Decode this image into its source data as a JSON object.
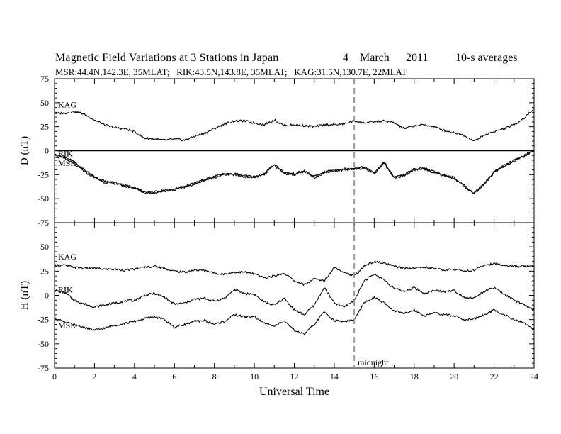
{
  "header": {
    "title": "Magnetic Field Variations at 3 Stations in Japan",
    "date_day": "4",
    "date_month": "March",
    "date_year": "2011",
    "averaging": "10-s averages",
    "stations_line": "MSR:44.4N,142.3E, 35MLAT;   RIK:43.5N,143.8E, 35MLAT;   KAG:31.5N,130.7E, 22MLAT"
  },
  "chart_data": [
    {
      "type": "line",
      "panel": "top",
      "ylabel": "D (nT)",
      "ylim": [
        -75,
        75
      ],
      "yticks": [
        -75,
        -50,
        -25,
        0,
        25,
        50,
        75
      ],
      "xlim": [
        0,
        24
      ],
      "zero_line": true,
      "series": [
        {
          "name": "KAG",
          "x": [
            0,
            0.5,
            1,
            1.5,
            2,
            2.5,
            3,
            3.5,
            4,
            4.5,
            5,
            5.5,
            6,
            6.5,
            7,
            7.5,
            8,
            8.5,
            9,
            9.5,
            10,
            10.5,
            11,
            11.5,
            12,
            12.5,
            13,
            13.5,
            14,
            14.5,
            15,
            15.5,
            16,
            16.5,
            17,
            17.5,
            18,
            18.5,
            19,
            19.5,
            20,
            20.5,
            21,
            21.5,
            22,
            22.5,
            23,
            23.5,
            24
          ],
          "values": [
            39,
            39,
            41,
            38,
            32,
            27,
            24,
            23,
            20,
            13,
            12,
            11,
            12,
            11,
            15,
            18,
            23,
            28,
            31,
            31,
            29,
            27,
            32,
            26,
            27,
            26,
            25,
            27,
            27,
            28,
            31,
            29,
            30,
            31,
            29,
            23,
            26,
            27,
            25,
            21,
            19,
            16,
            10,
            16,
            20,
            23,
            27,
            34,
            44
          ]
        },
        {
          "name": "RIK",
          "x": [
            0,
            0.5,
            1,
            1.5,
            2,
            2.5,
            3,
            3.5,
            4,
            4.5,
            5,
            5.5,
            6,
            6.5,
            7,
            7.5,
            8,
            8.5,
            9,
            9.5,
            10,
            10.5,
            11,
            11.5,
            12,
            12.5,
            13,
            13.5,
            14,
            14.5,
            15,
            15.5,
            16,
            16.5,
            17,
            17.5,
            18,
            18.5,
            19,
            19.5,
            20,
            20.5,
            21,
            21.5,
            22,
            22.5,
            23,
            23.5,
            24
          ],
          "values": [
            -4,
            -6,
            -12,
            -20,
            -27,
            -32,
            -33,
            -36,
            -38,
            -43,
            -43,
            -41,
            -40,
            -37,
            -34,
            -30,
            -27,
            -24,
            -24,
            -26,
            -27,
            -24,
            -14,
            -23,
            -24,
            -21,
            -27,
            -22,
            -20,
            -19,
            -18,
            -17,
            -23,
            -12,
            -28,
            -25,
            -19,
            -18,
            -22,
            -25,
            -28,
            -36,
            -44,
            -34,
            -22,
            -15,
            -10,
            -5,
            0
          ]
        },
        {
          "name": "MSR",
          "x": [
            0,
            0.5,
            1,
            1.5,
            2,
            2.5,
            3,
            3.5,
            4,
            4.5,
            5,
            5.5,
            6,
            6.5,
            7,
            7.5,
            8,
            8.5,
            9,
            9.5,
            10,
            10.5,
            11,
            11.5,
            12,
            12.5,
            13,
            13.5,
            14,
            14.5,
            15,
            15.5,
            16,
            16.5,
            17,
            17.5,
            18,
            18.5,
            19,
            19.5,
            20,
            20.5,
            21,
            21.5,
            22,
            22.5,
            23,
            23.5,
            24
          ],
          "values": [
            -6,
            -8,
            -14,
            -22,
            -28,
            -33,
            -34,
            -37,
            -39,
            -44,
            -44,
            -42,
            -41,
            -38,
            -35,
            -31,
            -28,
            -25,
            -25,
            -27,
            -28,
            -25,
            -15,
            -24,
            -25,
            -22,
            -28,
            -23,
            -21,
            -20,
            -19,
            -18,
            -24,
            -13,
            -29,
            -26,
            -20,
            -19,
            -23,
            -26,
            -29,
            -37,
            -45,
            -35,
            -23,
            -16,
            -11,
            -6,
            0
          ]
        }
      ],
      "labels": [
        "KAG",
        "RIK",
        "MSR"
      ]
    },
    {
      "type": "line",
      "panel": "bottom",
      "ylabel": "H (nT)",
      "xlabel": "Universal Time",
      "ylim": [
        -75,
        75
      ],
      "yticks": [
        -75,
        -50,
        -25,
        0,
        25,
        50
      ],
      "xlim": [
        0,
        24
      ],
      "xticks": [
        0,
        2,
        4,
        6,
        8,
        10,
        12,
        14,
        16,
        18,
        20,
        22,
        24
      ],
      "series": [
        {
          "name": "KAG",
          "x": [
            0,
            0.5,
            1,
            1.5,
            2,
            2.5,
            3,
            3.5,
            4,
            4.5,
            5,
            5.5,
            6,
            6.5,
            7,
            7.5,
            8,
            8.5,
            9,
            9.5,
            10,
            10.5,
            11,
            11.5,
            12,
            12.5,
            13,
            13.5,
            14,
            14.5,
            15,
            15.5,
            16,
            16.5,
            17,
            17.5,
            18,
            18.5,
            19,
            19.5,
            20,
            20.5,
            21,
            21.5,
            22,
            22.5,
            23,
            23.5,
            24
          ],
          "values": [
            31,
            31,
            29,
            28,
            28,
            27,
            27,
            26,
            27,
            29,
            30,
            28,
            25,
            24,
            26,
            26,
            23,
            22,
            24,
            24,
            22,
            18,
            20,
            23,
            15,
            11,
            17,
            15,
            29,
            24,
            20,
            30,
            35,
            33,
            30,
            28,
            28,
            29,
            28,
            26,
            27,
            25,
            26,
            31,
            33,
            31,
            30,
            30,
            31
          ]
        },
        {
          "name": "RIK",
          "x": [
            0,
            0.5,
            1,
            1.5,
            2,
            2.5,
            3,
            3.5,
            4,
            4.5,
            5,
            5.5,
            6,
            6.5,
            7,
            7.5,
            8,
            8.5,
            9,
            9.5,
            10,
            10.5,
            11,
            11.5,
            12,
            12.5,
            13,
            13.5,
            14,
            14.5,
            15,
            15.5,
            16,
            16.5,
            17,
            17.5,
            18,
            18.5,
            19,
            19.5,
            20,
            20.5,
            21,
            21.5,
            22,
            22.5,
            23,
            23.5,
            24
          ],
          "values": [
            5,
            3,
            -5,
            -9,
            -12,
            -10,
            -8,
            -6,
            -5,
            0,
            2,
            -2,
            -9,
            -8,
            -4,
            -3,
            -6,
            -3,
            6,
            2,
            1,
            -7,
            -10,
            -3,
            -15,
            -20,
            -10,
            8,
            -8,
            -12,
            -5,
            15,
            22,
            16,
            7,
            4,
            8,
            2,
            5,
            4,
            5,
            -2,
            -3,
            4,
            8,
            1,
            -5,
            -10,
            -15
          ]
        },
        {
          "name": "MSR",
          "x": [
            0,
            0.5,
            1,
            1.5,
            2,
            2.5,
            3,
            3.5,
            4,
            4.5,
            5,
            5.5,
            6,
            6.5,
            7,
            7.5,
            8,
            8.5,
            9,
            9.5,
            10,
            10.5,
            11,
            11.5,
            12,
            12.5,
            13,
            13.5,
            14,
            14.5,
            15,
            15.5,
            16,
            16.5,
            17,
            17.5,
            18,
            18.5,
            19,
            19.5,
            20,
            20.5,
            21,
            21.5,
            22,
            22.5,
            23,
            23.5,
            24
          ],
          "values": [
            -24,
            -27,
            -31,
            -33,
            -36,
            -34,
            -31,
            -29,
            -27,
            -24,
            -22,
            -25,
            -33,
            -30,
            -27,
            -26,
            -30,
            -27,
            -20,
            -22,
            -22,
            -29,
            -31,
            -27,
            -36,
            -40,
            -30,
            -17,
            -26,
            -27,
            -25,
            -8,
            -2,
            -8,
            -16,
            -19,
            -15,
            -21,
            -18,
            -20,
            -21,
            -25,
            -24,
            -20,
            -15,
            -20,
            -25,
            -29,
            -35
          ]
        }
      ],
      "labels": [
        "KAG",
        "RIK",
        "MSR"
      ],
      "marker_label": "midnight",
      "marker_x": 15
    }
  ],
  "colors": {
    "trace": "#000000",
    "marker": "#999999",
    "frame": "#000000"
  }
}
